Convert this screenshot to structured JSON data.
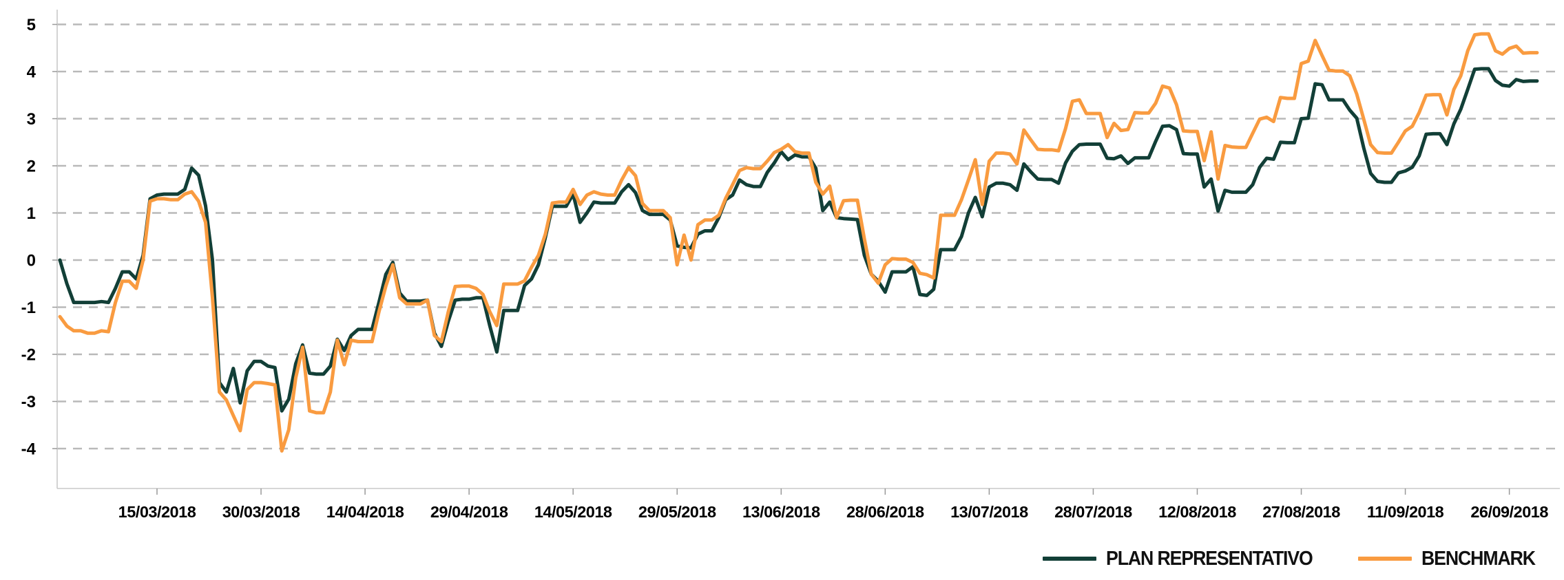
{
  "chart_data": {
    "type": "line",
    "title": "",
    "xlabel": "",
    "ylabel": "",
    "grid": "horizontal-dashed",
    "legend_position": "bottom-right",
    "x_start_date": "01/03/2018",
    "x_unit": "days",
    "ylim": [
      -4.85,
      5.15
    ],
    "y_ticks": [
      5,
      4,
      3,
      2,
      1,
      0,
      -1,
      -2,
      -3,
      -4
    ],
    "x_tick_day_indices": [
      14,
      29,
      44,
      59,
      74,
      89,
      104,
      119,
      134,
      149,
      164,
      179,
      194,
      209
    ],
    "x_tick_labels": [
      "15/03/2018",
      "30/03/2018",
      "14/04/2018",
      "29/04/2018",
      "14/05/2018",
      "29/05/2018",
      "13/06/2018",
      "28/06/2018",
      "13/07/2018",
      "28/07/2018",
      "12/08/2018",
      "27/08/2018",
      "11/09/2018",
      "26/09/2018"
    ],
    "series": [
      {
        "name": "PLAN REPRESENTATIVO",
        "color": "#123f37",
        "values": [
          0.0,
          -0.5,
          -0.9,
          -0.9,
          -0.9,
          -0.9,
          -0.88,
          -0.9,
          -0.6,
          -0.25,
          -0.25,
          -0.4,
          0.1,
          1.3,
          1.38,
          1.4,
          1.4,
          1.4,
          1.5,
          1.95,
          1.8,
          1.15,
          0.0,
          -2.6,
          -2.8,
          -2.3,
          -3.03,
          -2.35,
          -2.15,
          -2.15,
          -2.25,
          -2.28,
          -3.2,
          -2.95,
          -2.2,
          -1.8,
          -2.4,
          -2.42,
          -2.42,
          -2.25,
          -1.68,
          -1.92,
          -1.6,
          -1.47,
          -1.47,
          -1.47,
          -0.9,
          -0.3,
          -0.05,
          -0.7,
          -0.87,
          -0.87,
          -0.87,
          -0.85,
          -1.55,
          -1.83,
          -1.3,
          -0.85,
          -0.83,
          -0.83,
          -0.8,
          -0.8,
          -1.4,
          -1.95,
          -1.07,
          -1.07,
          -1.07,
          -0.54,
          -0.4,
          -0.1,
          0.48,
          1.14,
          1.14,
          1.14,
          1.4,
          0.8,
          1.0,
          1.23,
          1.21,
          1.21,
          1.21,
          1.45,
          1.6,
          1.43,
          1.05,
          0.97,
          0.97,
          0.97,
          0.85,
          0.3,
          0.27,
          0.26,
          0.55,
          0.62,
          0.62,
          0.9,
          1.28,
          1.38,
          1.7,
          1.6,
          1.56,
          1.56,
          1.86,
          2.06,
          2.3,
          2.13,
          2.23,
          2.19,
          2.19,
          1.95,
          1.05,
          1.23,
          0.9,
          0.88,
          0.87,
          0.86,
          0.1,
          -0.3,
          -0.45,
          -0.68,
          -0.25,
          -0.25,
          -0.25,
          -0.14,
          -0.73,
          -0.75,
          -0.62,
          0.22,
          0.22,
          0.22,
          0.5,
          1.0,
          1.33,
          0.92,
          1.55,
          1.63,
          1.63,
          1.6,
          1.48,
          2.04,
          1.87,
          1.72,
          1.71,
          1.71,
          1.63,
          2.06,
          2.31,
          2.45,
          2.46,
          2.46,
          2.46,
          2.16,
          2.15,
          2.21,
          2.05,
          2.17,
          2.17,
          2.17,
          2.52,
          2.84,
          2.85,
          2.77,
          2.26,
          2.25,
          2.25,
          1.55,
          1.72,
          1.04,
          1.48,
          1.44,
          1.44,
          1.44,
          1.6,
          1.97,
          2.16,
          2.14,
          2.5,
          2.49,
          2.49,
          3.0,
          3.01,
          3.74,
          3.72,
          3.4,
          3.4,
          3.4,
          3.18,
          3.01,
          2.38,
          1.84,
          1.67,
          1.65,
          1.65,
          1.85,
          1.89,
          1.97,
          2.21,
          2.67,
          2.68,
          2.68,
          2.45,
          2.89,
          3.2,
          3.62,
          4.05,
          4.06,
          4.06,
          3.81,
          3.71,
          3.69,
          3.83,
          3.79,
          3.8,
          3.8
        ]
      },
      {
        "name": "BENCHMARK",
        "color": "#f99b40",
        "values": [
          -1.2,
          -1.4,
          -1.5,
          -1.5,
          -1.55,
          -1.55,
          -1.5,
          -1.52,
          -0.9,
          -0.45,
          -0.45,
          -0.6,
          0.0,
          1.25,
          1.3,
          1.3,
          1.28,
          1.28,
          1.4,
          1.45,
          1.25,
          0.8,
          -0.8,
          -2.8,
          -2.97,
          -3.3,
          -3.62,
          -2.75,
          -2.6,
          -2.6,
          -2.62,
          -2.65,
          -4.05,
          -3.6,
          -2.5,
          -1.85,
          -3.2,
          -3.24,
          -3.24,
          -2.8,
          -1.7,
          -2.22,
          -1.7,
          -1.73,
          -1.73,
          -1.73,
          -1.1,
          -0.55,
          -0.1,
          -0.8,
          -0.93,
          -0.93,
          -0.93,
          -0.85,
          -1.6,
          -1.73,
          -1.1,
          -0.56,
          -0.55,
          -0.55,
          -0.6,
          -0.73,
          -1.1,
          -1.39,
          -0.51,
          -0.51,
          -0.51,
          -0.44,
          -0.15,
          0.1,
          0.55,
          1.21,
          1.23,
          1.23,
          1.5,
          1.18,
          1.38,
          1.45,
          1.4,
          1.38,
          1.38,
          1.7,
          1.96,
          1.79,
          1.2,
          1.05,
          1.05,
          1.05,
          0.9,
          -0.1,
          0.53,
          0.0,
          0.75,
          0.85,
          0.85,
          0.95,
          1.31,
          1.6,
          1.9,
          1.96,
          1.94,
          1.94,
          2.1,
          2.28,
          2.35,
          2.45,
          2.3,
          2.27,
          2.27,
          1.65,
          1.4,
          1.57,
          0.9,
          1.26,
          1.27,
          1.27,
          0.45,
          -0.3,
          -0.49,
          -0.1,
          0.03,
          0.02,
          0.02,
          -0.05,
          -0.28,
          -0.31,
          -0.38,
          0.95,
          0.95,
          0.95,
          1.28,
          1.7,
          2.13,
          1.18,
          2.1,
          2.27,
          2.27,
          2.25,
          2.04,
          2.76,
          2.55,
          2.35,
          2.34,
          2.34,
          2.32,
          2.79,
          3.37,
          3.4,
          3.11,
          3.11,
          3.11,
          2.6,
          2.9,
          2.75,
          2.77,
          3.13,
          3.12,
          3.12,
          3.33,
          3.69,
          3.65,
          3.3,
          2.74,
          2.73,
          2.73,
          2.11,
          2.72,
          1.72,
          2.43,
          2.4,
          2.39,
          2.39,
          2.69,
          2.99,
          3.03,
          2.94,
          3.45,
          3.43,
          3.43,
          4.17,
          4.22,
          4.66,
          4.34,
          4.03,
          4.01,
          4.01,
          3.91,
          3.52,
          2.99,
          2.45,
          2.28,
          2.27,
          2.27,
          2.5,
          2.74,
          2.84,
          3.13,
          3.5,
          3.51,
          3.51,
          3.08,
          3.62,
          3.91,
          4.44,
          4.78,
          4.8,
          4.8,
          4.44,
          4.37,
          4.49,
          4.54,
          4.39,
          4.4,
          4.4
        ]
      }
    ],
    "style": {
      "grid_color": "#b9b9b9",
      "axis_color": "#c8c8c8",
      "tick_color": "#999999",
      "label_color": "#000000",
      "line_width": 5,
      "background": "#ffffff"
    }
  },
  "legend": {
    "items": [
      {
        "label": "PLAN REPRESENTATIVO",
        "color": "#123f37"
      },
      {
        "label": "BENCHMARK",
        "color": "#f99b40"
      }
    ]
  }
}
